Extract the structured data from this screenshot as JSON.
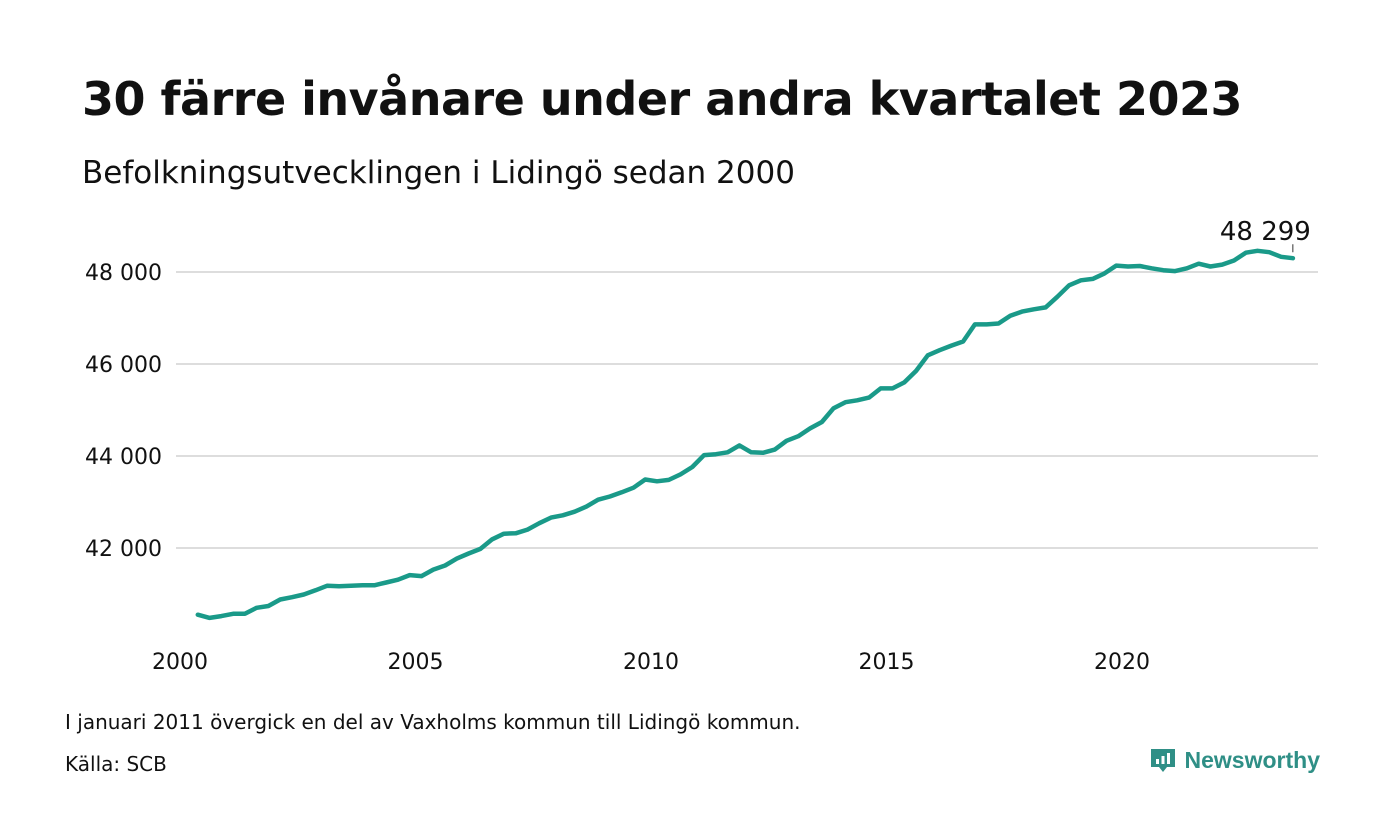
{
  "title": "30 färre invånare under andra kvartalet 2023",
  "subtitle": "Befolkningsutvecklingen i Lidingö sedan 2000",
  "note": "I januari 2011 övergick en del av Vaxholms kommun till Lidingö kommun.",
  "source": "Källa: SCB",
  "brand": {
    "name": "Newsworthy",
    "icon": "newsworthy-logo-icon",
    "color": "#2f8f86"
  },
  "chart_data": {
    "type": "line",
    "title": "30 färre invånare under andra kvartalet 2023",
    "subtitle": "Befolkningsutvecklingen i Lidingö sedan 2000",
    "xlabel": "",
    "ylabel": "",
    "xlim": [
      2000,
      2024.5
    ],
    "ylim": [
      40000,
      48700
    ],
    "grid": true,
    "color": "#1a9a89",
    "x_ticks": [
      {
        "value": 2000,
        "label": "2000"
      },
      {
        "value": 2005,
        "label": "2005"
      },
      {
        "value": 2010,
        "label": "2010"
      },
      {
        "value": 2015,
        "label": "2015"
      },
      {
        "value": 2020,
        "label": "2020"
      }
    ],
    "y_ticks": [
      {
        "value": 42000,
        "label": "42 000"
      },
      {
        "value": 44000,
        "label": "44 000"
      },
      {
        "value": 46000,
        "label": "46 000"
      },
      {
        "value": 48000,
        "label": "48 000"
      }
    ],
    "end_label": "48 299",
    "x": [
      2000.25,
      2000.5,
      2000.75,
      2001.0,
      2001.25,
      2001.5,
      2001.75,
      2002.0,
      2002.25,
      2002.5,
      2002.75,
      2003.0,
      2003.25,
      2003.5,
      2003.75,
      2004.0,
      2004.25,
      2004.5,
      2004.75,
      2005.0,
      2005.25,
      2005.5,
      2005.75,
      2006.0,
      2006.25,
      2006.5,
      2006.75,
      2007.0,
      2007.25,
      2007.5,
      2007.75,
      2008.0,
      2008.25,
      2008.5,
      2008.75,
      2009.0,
      2009.25,
      2009.5,
      2009.75,
      2010.0,
      2010.25,
      2010.5,
      2010.75,
      2011.0,
      2011.25,
      2011.5,
      2011.75,
      2012.0,
      2012.25,
      2012.5,
      2012.75,
      2013.0,
      2013.25,
      2013.5,
      2013.75,
      2014.0,
      2014.25,
      2014.5,
      2014.75,
      2015.0,
      2015.25,
      2015.5,
      2015.75,
      2016.0,
      2016.25,
      2016.5,
      2016.75,
      2017.0,
      2017.25,
      2017.5,
      2017.75,
      2018.0,
      2018.25,
      2018.5,
      2018.75,
      2019.0,
      2019.25,
      2019.5,
      2019.75,
      2020.0,
      2020.25,
      2020.5,
      2020.75,
      2021.0,
      2021.25,
      2021.5,
      2021.75,
      2022.0,
      2022.25,
      2022.5,
      2022.75,
      2023.0,
      2023.25,
      2023.5
    ],
    "values": [
      40550,
      40480,
      40520,
      40570,
      40570,
      40700,
      40740,
      40880,
      40930,
      40990,
      41080,
      41180,
      41170,
      41180,
      41190,
      41190,
      41250,
      41310,
      41410,
      41390,
      41530,
      41620,
      41770,
      41880,
      41980,
      42190,
      42310,
      42320,
      42400,
      42540,
      42660,
      42710,
      42790,
      42900,
      43050,
      43120,
      43210,
      43310,
      43490,
      43450,
      43480,
      43600,
      43760,
      44020,
      44040,
      44080,
      44230,
      44080,
      44070,
      44140,
      44330,
      44430,
      44600,
      44740,
      45040,
      45170,
      45210,
      45270,
      45470,
      45470,
      45600,
      45850,
      46190,
      46300,
      46400,
      46490,
      46860,
      46860,
      46880,
      47050,
      47140,
      47190,
      47230,
      47460,
      47710,
      47820,
      47850,
      47970,
      48140,
      48120,
      48130,
      48080,
      48040,
      48020,
      48080,
      48180,
      48120,
      48160,
      48250,
      48420,
      48460,
      48430,
      48330,
      48299
    ]
  }
}
